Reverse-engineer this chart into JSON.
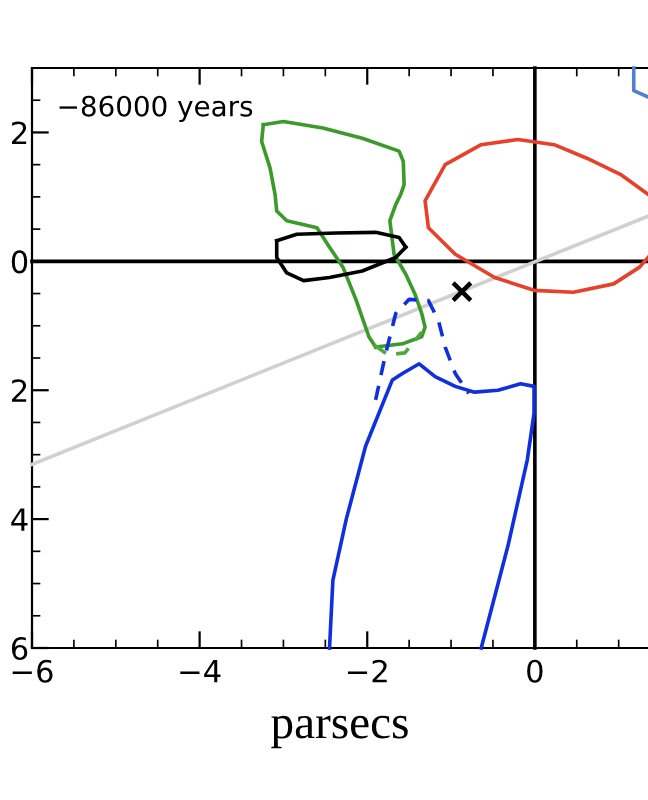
{
  "chart_data": {
    "type": "line",
    "xlabel": "parsecs",
    "annotations": [
      "−86000 years"
    ],
    "xlim": [
      -6,
      1.35
    ],
    "ylim": [
      -6,
      3
    ],
    "xticks": [
      -6,
      -4,
      -2,
      0
    ],
    "yticks": [
      {
        "value": 2,
        "label": "2"
      },
      {
        "value": 0,
        "label": "0"
      },
      {
        "value": -2,
        "label": "2"
      },
      {
        "value": -4,
        "label": "4"
      },
      {
        "value": -6,
        "label": "6"
      }
    ],
    "grid": false,
    "legend": false,
    "series": [
      {
        "color": "#000000",
        "x": [
          0,
          0
        ],
        "values": [
          -6,
          3
        ]
      },
      {
        "color": "#000000",
        "x": [
          -6,
          1.35
        ],
        "values": [
          0,
          0
        ]
      },
      {
        "color": "#d0d0d0",
        "x": [
          -6,
          1.35
        ],
        "values": [
          -3.15,
          0.7
        ]
      },
      {
        "color": "#3a9a2a",
        "x": [
          -3.24,
          -3.0,
          -2.53,
          -2.06,
          -1.62,
          -1.57,
          -1.56,
          -1.6,
          -1.66,
          -1.73,
          -1.68,
          -1.54,
          -1.43,
          -1.35,
          -1.31,
          -1.35,
          -1.58,
          -1.9
        ],
        "values": [
          2.12,
          2.17,
          2.07,
          1.91,
          1.71,
          1.55,
          1.19,
          1.04,
          0.88,
          0.63,
          0.11,
          -0.2,
          -0.51,
          -0.81,
          -1.02,
          -1.17,
          -1.28,
          -1.33
        ]
      },
      {
        "color": "#3a9a2a",
        "x": [
          -1.9,
          -1.98,
          -2.13,
          -2.29,
          -2.45,
          -2.6,
          -2.96,
          -3.08,
          -3.1,
          -3.16,
          -3.26,
          -3.24
        ],
        "values": [
          -1.33,
          -1.17,
          -0.61,
          -0.09,
          0.22,
          0.52,
          0.63,
          0.78,
          1.04,
          1.45,
          1.86,
          2.12
        ]
      },
      {
        "color": "#4caa3c",
        "line_style": "dashed",
        "x": [
          -1.92,
          -1.75,
          -1.55,
          -1.35
        ],
        "values": [
          -1.3,
          -1.45,
          -1.42,
          -1.1
        ]
      },
      {
        "color": "#000000",
        "x": [
          -3.08,
          -2.84,
          -2.37,
          -1.9,
          -1.62,
          -1.54
        ],
        "values": [
          0.32,
          0.42,
          0.44,
          0.45,
          0.37,
          0.22
        ]
      },
      {
        "color": "#000000",
        "x": [
          -1.54,
          -1.66,
          -2.06,
          -2.45,
          -2.76,
          -2.96,
          -3.08,
          -3.08
        ],
        "values": [
          0.22,
          0.06,
          -0.15,
          -0.25,
          -0.3,
          -0.18,
          0.06,
          0.32
        ]
      },
      {
        "color": "#e8402a",
        "x": [
          1.35,
          1.02,
          0.62,
          0.23,
          -0.2,
          -0.64,
          -1.07,
          -1.31,
          -1.27,
          -0.95,
          -0.48,
          -0.01,
          0.46,
          0.94,
          1.25,
          1.35
        ],
        "values": [
          1.04,
          1.35,
          1.6,
          1.81,
          1.89,
          1.81,
          1.5,
          0.94,
          0.52,
          0.11,
          -0.25,
          -0.45,
          -0.48,
          -0.35,
          -0.09,
          0.06
        ]
      },
      {
        "color": "#1030e0",
        "x": [
          -2.45,
          -2.41,
          -2.25,
          -2.02,
          -1.7,
          -1.58,
          -1.38,
          -1.19,
          -0.95,
          -0.72,
          -0.44,
          -0.17,
          -0.01,
          -0.01,
          -0.09,
          -0.32,
          -0.64
        ],
        "values": [
          -6.0,
          -4.95,
          -4.0,
          -2.87,
          -1.84,
          -1.74,
          -1.59,
          -1.79,
          -1.94,
          -2.03,
          -2.0,
          -1.9,
          -1.94,
          -2.36,
          -3.08,
          -4.41,
          -6.0
        ]
      },
      {
        "color": "#1030e0",
        "line_style": "dashed",
        "x": [
          -1.9,
          -1.78,
          -1.66,
          -1.5,
          -1.27,
          -1.15,
          -1.07,
          -0.95,
          -0.79
        ],
        "values": [
          -2.15,
          -1.43,
          -0.81,
          -0.59,
          -0.61,
          -0.92,
          -1.33,
          -1.74,
          -2.05
        ]
      },
      {
        "color": "#5080d0",
        "x": [
          1.18,
          1.18,
          1.35
        ],
        "values": [
          3.0,
          2.65,
          2.55
        ]
      },
      {
        "type": "scatter",
        "marker": "cross",
        "color": "#000000",
        "x": [
          -0.87
        ],
        "values": [
          -0.47
        ]
      }
    ]
  }
}
